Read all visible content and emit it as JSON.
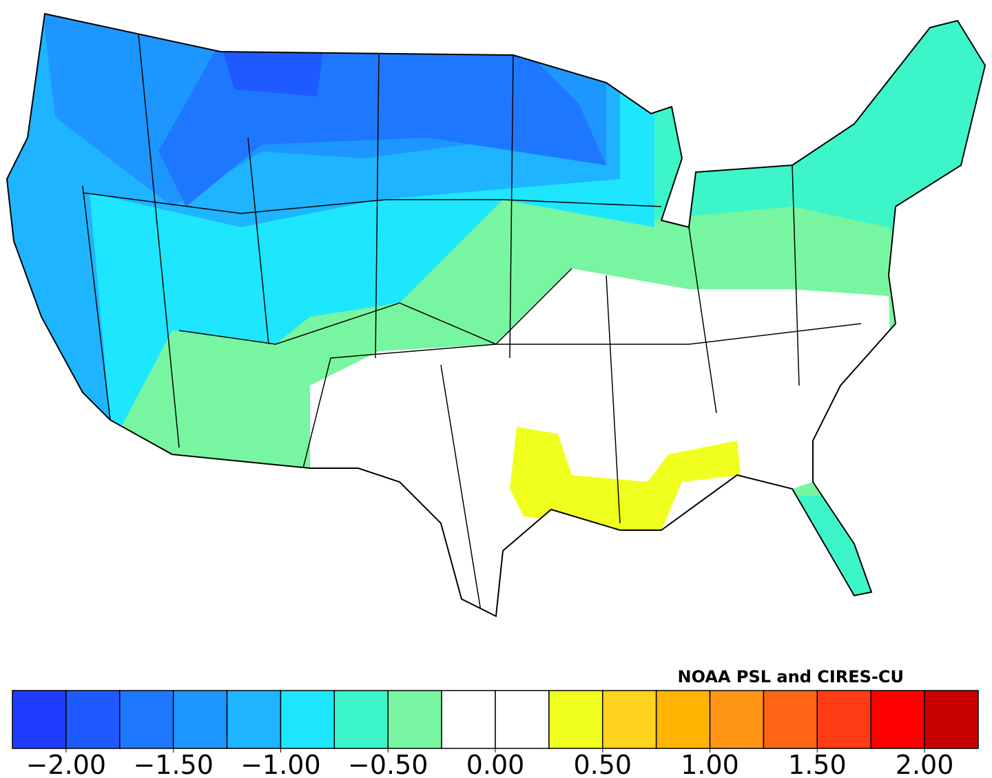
{
  "credit": "NOAA PSL and CIRES-CU",
  "colorbar": {
    "lim": [
      -2.25,
      2.25
    ],
    "colors": [
      "#1e3cff",
      "#1e5aff",
      "#1e78ff",
      "#1e96ff",
      "#1eb4ff",
      "#1ee6ff",
      "#3cf5c8",
      "#78f5a0",
      "#ffffff",
      "#ffffff",
      "#f0ff1e",
      "#ffd21e",
      "#ffb400",
      "#ff9614",
      "#ff6414",
      "#ff3c14",
      "#ff0000",
      "#c80000"
    ],
    "ticks": [
      {
        "value": -2,
        "label": "−2.00"
      },
      {
        "value": -1.5,
        "label": "−1.50"
      },
      {
        "value": -1,
        "label": "−1.00"
      },
      {
        "value": -0.5,
        "label": "−0.50"
      },
      {
        "value": 0,
        "label": "0.00"
      },
      {
        "value": 0.5,
        "label": "0.50"
      },
      {
        "value": 1,
        "label": "1.00"
      },
      {
        "value": 1.5,
        "label": "1.50"
      },
      {
        "value": 2,
        "label": "2.00"
      }
    ]
  }
}
